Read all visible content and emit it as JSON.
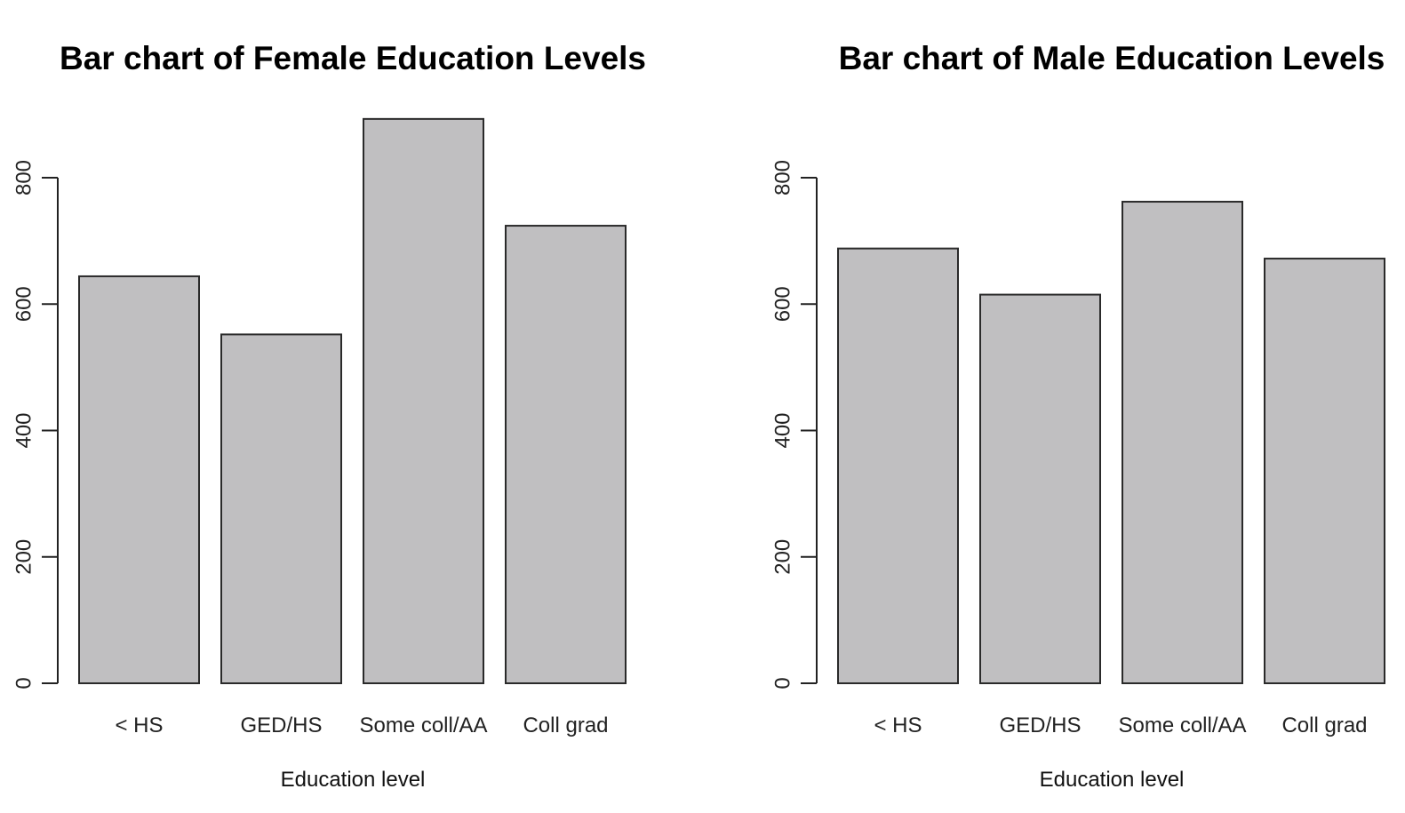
{
  "chart_data": [
    {
      "type": "bar",
      "title": "Bar chart of Female Education Levels",
      "xlabel": "Education level",
      "ylabel": "",
      "categories": [
        "< HS",
        "GED/HS",
        "Some coll/AA",
        "Coll grad"
      ],
      "values": [
        644,
        552,
        893,
        724
      ],
      "ylim": [
        0,
        800
      ],
      "yticks": [
        0,
        200,
        400,
        600,
        800
      ],
      "bar_color": "#c0bfc1",
      "grid": false
    },
    {
      "type": "bar",
      "title": "Bar chart of Male Education Levels",
      "xlabel": "Education level",
      "ylabel": "",
      "categories": [
        "< HS",
        "GED/HS",
        "Some coll/AA",
        "Coll grad"
      ],
      "values": [
        688,
        615,
        762,
        672
      ],
      "ylim": [
        0,
        800
      ],
      "yticks": [
        0,
        200,
        400,
        600,
        800
      ],
      "bar_color": "#c0bfc1",
      "grid": false
    }
  ]
}
